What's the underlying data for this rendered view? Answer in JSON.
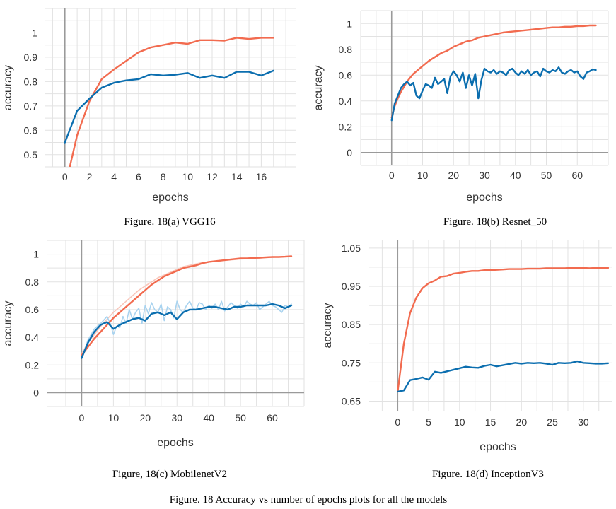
{
  "figure_caption": "Figure. 18 Accuracy vs number of epochs plots for all the models",
  "colors": {
    "train": "#f26b4f",
    "val": "#0b6eaf",
    "train_raw": "#f9c6ba",
    "val_raw": "#a9d3ef"
  },
  "chart_data": [
    {
      "type": "line",
      "caption": "Figure. 18(a) VGG16",
      "xlabel": "epochs",
      "ylabel": "accuracy",
      "xlim": [
        -1.6,
        18.8
      ],
      "ylim": [
        0.45,
        1.1
      ],
      "xticks": [
        "0",
        "2",
        "4",
        "6",
        "8",
        "10",
        "12",
        "14",
        "16"
      ],
      "yticks": [
        "0.5",
        "0.6",
        "0.7",
        "0.8",
        "0.9",
        "1"
      ],
      "grid": true,
      "series": [
        {
          "color": "train",
          "x": [
            0.4,
            1,
            2,
            3,
            4,
            5,
            6,
            7,
            8,
            9,
            10,
            11,
            12,
            13,
            14,
            15,
            16,
            17
          ],
          "y": [
            0.45,
            0.58,
            0.72,
            0.81,
            0.85,
            0.885,
            0.92,
            0.94,
            0.95,
            0.96,
            0.955,
            0.97,
            0.97,
            0.968,
            0.98,
            0.975,
            0.98,
            0.98
          ]
        },
        {
          "color": "val",
          "x": [
            0,
            1,
            2,
            3,
            4,
            5,
            6,
            7,
            8,
            9,
            10,
            11,
            12,
            13,
            14,
            15,
            16,
            17
          ],
          "y": [
            0.55,
            0.68,
            0.73,
            0.775,
            0.795,
            0.805,
            0.81,
            0.83,
            0.825,
            0.828,
            0.835,
            0.815,
            0.825,
            0.815,
            0.84,
            0.84,
            0.825,
            0.845
          ]
        }
      ]
    },
    {
      "type": "line",
      "caption": "Figure. 18(b) Resnet_50",
      "xlabel": "epochs",
      "ylabel": "accuracy",
      "xlim": [
        -10,
        70
      ],
      "ylim": [
        -0.1,
        1.1
      ],
      "xticks": [
        "0",
        "10",
        "20",
        "30",
        "40",
        "50",
        "60"
      ],
      "yticks": [
        "0",
        "0.2",
        "0.4",
        "0.6",
        "0.8",
        "1"
      ],
      "grid": true,
      "series": [
        {
          "color": "train",
          "x": [
            0,
            1,
            2,
            3,
            4,
            5,
            6,
            7,
            8,
            9,
            10,
            12,
            14,
            16,
            18,
            20,
            22,
            24,
            26,
            28,
            30,
            32,
            34,
            36,
            38,
            40,
            42,
            44,
            46,
            48,
            50,
            52,
            54,
            56,
            58,
            60,
            62,
            64,
            66
          ],
          "y": [
            0.27,
            0.36,
            0.42,
            0.47,
            0.51,
            0.55,
            0.58,
            0.61,
            0.63,
            0.65,
            0.67,
            0.71,
            0.74,
            0.77,
            0.79,
            0.82,
            0.84,
            0.86,
            0.87,
            0.89,
            0.9,
            0.91,
            0.92,
            0.93,
            0.935,
            0.94,
            0.945,
            0.95,
            0.955,
            0.96,
            0.965,
            0.97,
            0.97,
            0.975,
            0.975,
            0.98,
            0.98,
            0.985,
            0.985
          ]
        },
        {
          "color": "val",
          "x": [
            0,
            1,
            2,
            3,
            4,
            5,
            6,
            7,
            8,
            9,
            10,
            11,
            12,
            13,
            14,
            15,
            16,
            17,
            18,
            19,
            20,
            21,
            22,
            23,
            24,
            25,
            26,
            27,
            28,
            29,
            30,
            31,
            32,
            33,
            34,
            35,
            36,
            37,
            38,
            39,
            40,
            41,
            42,
            43,
            44,
            45,
            46,
            47,
            48,
            49,
            50,
            51,
            52,
            53,
            54,
            55,
            56,
            57,
            58,
            59,
            60,
            61,
            62,
            63,
            64,
            65,
            66
          ],
          "y": [
            0.25,
            0.38,
            0.44,
            0.5,
            0.53,
            0.55,
            0.52,
            0.54,
            0.44,
            0.42,
            0.48,
            0.53,
            0.52,
            0.5,
            0.58,
            0.53,
            0.55,
            0.57,
            0.46,
            0.59,
            0.63,
            0.6,
            0.55,
            0.62,
            0.5,
            0.6,
            0.52,
            0.61,
            0.42,
            0.56,
            0.65,
            0.63,
            0.62,
            0.64,
            0.61,
            0.63,
            0.62,
            0.6,
            0.64,
            0.65,
            0.62,
            0.6,
            0.63,
            0.61,
            0.64,
            0.6,
            0.62,
            0.63,
            0.59,
            0.65,
            0.63,
            0.62,
            0.64,
            0.63,
            0.66,
            0.62,
            0.61,
            0.63,
            0.64,
            0.62,
            0.63,
            0.59,
            0.57,
            0.62,
            0.63,
            0.645,
            0.64
          ]
        }
      ]
    },
    {
      "type": "line",
      "caption": "Figure, 18(c) MobilenetV2",
      "xlabel": "epochs",
      "ylabel": "accuracy",
      "xlim": [
        -11,
        70
      ],
      "ylim": [
        -0.1,
        1.1
      ],
      "xticks": [
        "0",
        "10",
        "20",
        "30",
        "40",
        "50",
        "60"
      ],
      "yticks": [
        "0",
        "0.2",
        "0.4",
        "0.6",
        "0.8",
        "1"
      ],
      "grid": true,
      "series": [
        {
          "color": "train_raw",
          "x": [
            0,
            2,
            4,
            6,
            8,
            10,
            12,
            14,
            16,
            18,
            20,
            22,
            24,
            26,
            28,
            30,
            32,
            34,
            36,
            38,
            40,
            45,
            50,
            55,
            60,
            66
          ],
          "y": [
            0.28,
            0.36,
            0.42,
            0.48,
            0.53,
            0.58,
            0.62,
            0.66,
            0.7,
            0.74,
            0.77,
            0.8,
            0.83,
            0.85,
            0.87,
            0.89,
            0.91,
            0.92,
            0.93,
            0.94,
            0.945,
            0.955,
            0.965,
            0.97,
            0.978,
            0.985
          ]
        },
        {
          "color": "val_raw",
          "x": [
            0,
            2,
            4,
            6,
            8,
            9,
            10,
            11,
            12,
            13,
            14,
            15,
            16,
            17,
            18,
            19,
            20,
            21,
            22,
            23,
            24,
            25,
            26,
            27,
            28,
            29,
            30,
            31,
            32,
            33,
            34,
            35,
            36,
            37,
            38,
            39,
            40,
            41,
            42,
            43,
            44,
            45,
            46,
            47,
            48,
            49,
            50,
            51,
            52,
            53,
            54,
            55,
            56,
            57,
            58,
            59,
            60,
            61,
            62,
            63,
            64,
            65,
            66
          ],
          "y": [
            0.25,
            0.38,
            0.46,
            0.5,
            0.55,
            0.5,
            0.42,
            0.48,
            0.47,
            0.55,
            0.5,
            0.6,
            0.53,
            0.58,
            0.61,
            0.5,
            0.63,
            0.57,
            0.65,
            0.6,
            0.58,
            0.64,
            0.52,
            0.62,
            0.6,
            0.54,
            0.66,
            0.6,
            0.58,
            0.63,
            0.66,
            0.61,
            0.6,
            0.65,
            0.64,
            0.6,
            0.63,
            0.61,
            0.64,
            0.6,
            0.66,
            0.59,
            0.62,
            0.65,
            0.63,
            0.61,
            0.64,
            0.62,
            0.66,
            0.64,
            0.63,
            0.65,
            0.6,
            0.62,
            0.64,
            0.66,
            0.63,
            0.62,
            0.6,
            0.58,
            0.63,
            0.62,
            0.64
          ]
        },
        {
          "color": "train",
          "x": [
            0,
            2,
            4,
            6,
            8,
            10,
            12,
            14,
            16,
            18,
            20,
            22,
            24,
            26,
            28,
            30,
            32,
            34,
            36,
            38,
            40,
            42,
            44,
            46,
            48,
            50,
            52,
            54,
            56,
            58,
            60,
            62,
            64,
            66
          ],
          "y": [
            0.27,
            0.33,
            0.39,
            0.44,
            0.49,
            0.54,
            0.58,
            0.62,
            0.66,
            0.7,
            0.74,
            0.78,
            0.81,
            0.84,
            0.86,
            0.88,
            0.9,
            0.91,
            0.92,
            0.935,
            0.945,
            0.95,
            0.955,
            0.96,
            0.965,
            0.97,
            0.97,
            0.973,
            0.975,
            0.978,
            0.98,
            0.98,
            0.982,
            0.985
          ]
        },
        {
          "color": "val",
          "x": [
            0,
            2,
            4,
            6,
            8,
            10,
            12,
            14,
            16,
            18,
            20,
            22,
            24,
            26,
            28,
            30,
            32,
            34,
            36,
            38,
            40,
            42,
            44,
            46,
            48,
            50,
            52,
            54,
            56,
            58,
            60,
            62,
            64,
            66
          ],
          "y": [
            0.25,
            0.36,
            0.44,
            0.49,
            0.51,
            0.46,
            0.49,
            0.51,
            0.53,
            0.54,
            0.52,
            0.57,
            0.58,
            0.56,
            0.58,
            0.53,
            0.58,
            0.6,
            0.6,
            0.61,
            0.62,
            0.62,
            0.61,
            0.6,
            0.62,
            0.62,
            0.63,
            0.63,
            0.63,
            0.63,
            0.64,
            0.63,
            0.61,
            0.63
          ]
        }
      ]
    },
    {
      "type": "line",
      "caption": "Figure. 18(d) InceptionV3",
      "xlabel": "epochs",
      "ylabel": "accuracy",
      "xlim": [
        -4.6,
        34.7
      ],
      "ylim": [
        0.625,
        1.07
      ],
      "xticks": [
        "0",
        "5",
        "10",
        "15",
        "20",
        "25",
        "30"
      ],
      "yticks": [
        "0.65",
        "0.75",
        "0.85",
        "0.95",
        "1.05"
      ],
      "grid": true,
      "series": [
        {
          "color": "train",
          "x": [
            0,
            1,
            2,
            3,
            4,
            5,
            6,
            7,
            8,
            9,
            10,
            11,
            12,
            13,
            14,
            15,
            16,
            17,
            18,
            19,
            20,
            21,
            22,
            23,
            24,
            25,
            26,
            27,
            28,
            29,
            30,
            31,
            32,
            33,
            34
          ],
          "y": [
            0.675,
            0.8,
            0.88,
            0.92,
            0.945,
            0.958,
            0.965,
            0.975,
            0.977,
            0.983,
            0.985,
            0.988,
            0.99,
            0.99,
            0.992,
            0.992,
            0.993,
            0.994,
            0.995,
            0.995,
            0.995,
            0.996,
            0.996,
            0.996,
            0.997,
            0.997,
            0.997,
            0.997,
            0.998,
            0.998,
            0.998,
            0.997,
            0.998,
            0.998,
            0.998
          ]
        },
        {
          "color": "val",
          "x": [
            0,
            1,
            2,
            3,
            4,
            5,
            6,
            7,
            8,
            9,
            10,
            11,
            12,
            13,
            14,
            15,
            16,
            17,
            18,
            19,
            20,
            21,
            22,
            23,
            24,
            25,
            26,
            27,
            28,
            29,
            30,
            31,
            32,
            33,
            34
          ],
          "y": [
            0.675,
            0.678,
            0.705,
            0.708,
            0.712,
            0.706,
            0.727,
            0.724,
            0.728,
            0.732,
            0.736,
            0.74,
            0.738,
            0.737,
            0.742,
            0.745,
            0.741,
            0.744,
            0.747,
            0.75,
            0.748,
            0.75,
            0.749,
            0.75,
            0.748,
            0.745,
            0.75,
            0.749,
            0.75,
            0.754,
            0.75,
            0.749,
            0.748,
            0.748,
            0.749
          ]
        }
      ]
    }
  ]
}
